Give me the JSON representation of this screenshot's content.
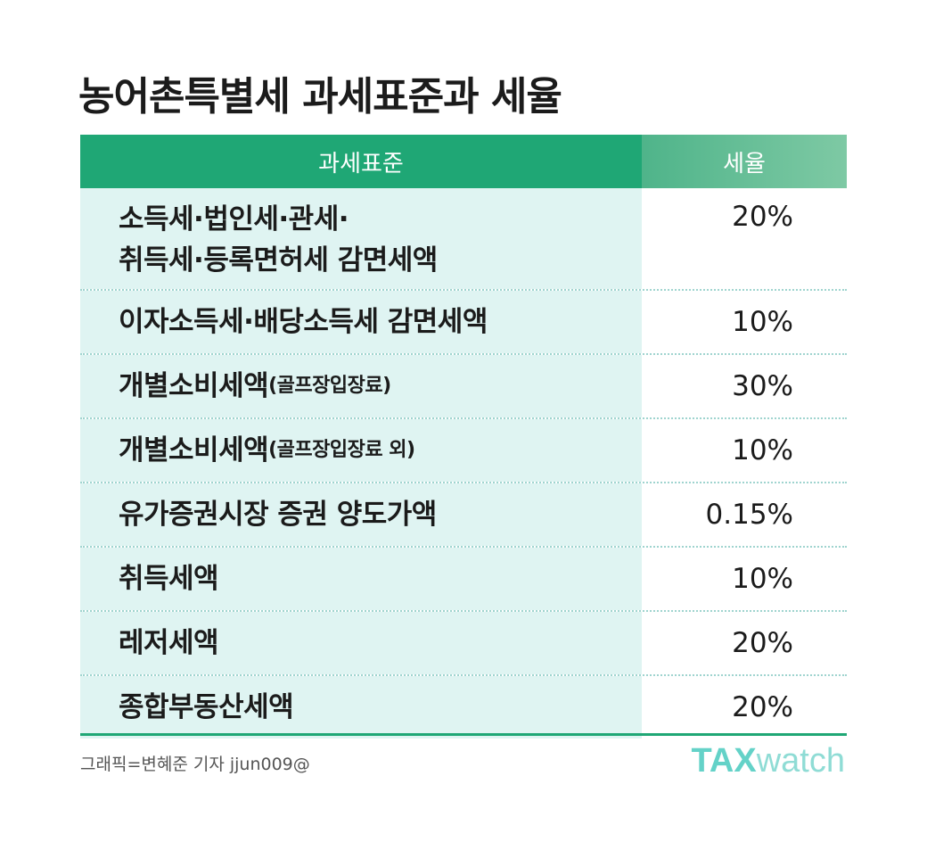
{
  "title": "농어촌특별세 과세표준과 세율",
  "header": {
    "base": "과세표준",
    "rate": "세율"
  },
  "rows": [
    {
      "line1": "소득세·법인세·관세·",
      "line2": "취득세·등록면허세 감면세액",
      "rate": "20%"
    },
    {
      "main": "이자소득세·배당소득세 감면세액",
      "rate": "10%"
    },
    {
      "main": "개별소비세액",
      "note": "(골프장입장료)",
      "rate": "30%"
    },
    {
      "main": "개별소비세액",
      "note": "(골프장입장료 외)",
      "rate": "10%"
    },
    {
      "main": "유가증권시장 증권 양도가액",
      "rate": "0.15%"
    },
    {
      "main": "취득세액",
      "rate": "10%"
    },
    {
      "main": "레저세액",
      "rate": "20%"
    },
    {
      "main": "종합부동산세액",
      "rate": "20%"
    }
  ],
  "footer": {
    "credit": "그래픽=변혜준 기자 jjun009@",
    "logo_tax": "TAX",
    "logo_watch": "watch"
  },
  "colors": {
    "header": "#1fa775",
    "shade": "#dff4f2",
    "logo": "#64d2c8"
  }
}
